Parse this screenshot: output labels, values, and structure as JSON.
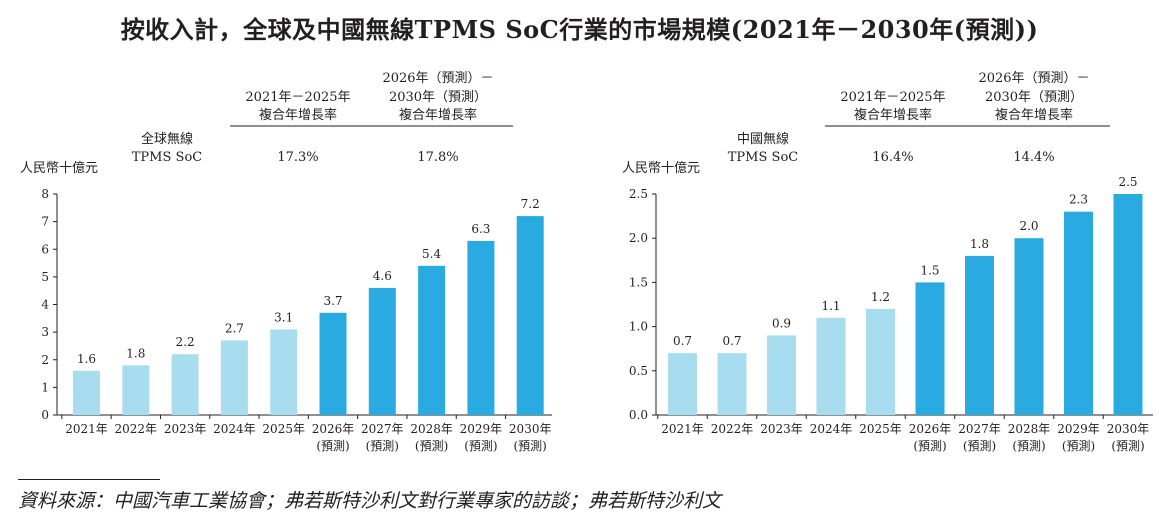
{
  "title": "按收入計，全球及中國無線TPMS SoC行業的市場規模(2021年－2030年(預測))",
  "colors": {
    "historical": "#a8ddf0",
    "forecast": "#29abe2",
    "axis": "#231f20",
    "text": "#231f20"
  },
  "cagr_headers": {
    "period1": [
      "2021年－2025年",
      "複合年增長率"
    ],
    "period2": [
      "2026年（預測）－",
      "2030年（預測）",
      "複合年增長率"
    ]
  },
  "chart_data": [
    {
      "type": "bar",
      "region": "global",
      "segment_label": [
        "全球無線",
        "TPMS SoC"
      ],
      "cagr": {
        "period1": "17.3%",
        "period2": "17.8%"
      },
      "ylabel": "人民幣十億元",
      "ylim": [
        0,
        8
      ],
      "ytick_step": 1,
      "ytick_labels": [
        "0",
        "1",
        "2",
        "3",
        "4",
        "5",
        "6",
        "7",
        "8"
      ],
      "categories": [
        "2021年",
        "2022年",
        "2023年",
        "2024年",
        "2025年",
        "2026年",
        "2027年",
        "2028年",
        "2029年",
        "2030年"
      ],
      "category_sublabels": [
        "",
        "",
        "",
        "",
        "",
        "(預測)",
        "(預測)",
        "(預測)",
        "(預測)",
        "(預測)"
      ],
      "values": [
        1.6,
        1.8,
        2.2,
        2.7,
        3.1,
        3.7,
        4.6,
        5.4,
        6.3,
        7.2
      ],
      "value_labels": [
        "1.6",
        "1.8",
        "2.2",
        "2.7",
        "3.1",
        "3.7",
        "4.6",
        "5.4",
        "6.3",
        "7.2"
      ],
      "forecast": [
        false,
        false,
        false,
        false,
        false,
        true,
        true,
        true,
        true,
        true
      ]
    },
    {
      "type": "bar",
      "region": "china",
      "segment_label": [
        "中國無線",
        "TPMS SoC"
      ],
      "cagr": {
        "period1": "16.4%",
        "period2": "14.4%"
      },
      "ylabel": "人民幣十億元",
      "ylim": [
        0,
        2.5
      ],
      "ytick_step": 0.5,
      "ytick_labels": [
        "0.0",
        "0.5",
        "1.0",
        "1.5",
        "2.0",
        "2.5"
      ],
      "categories": [
        "2021年",
        "2022年",
        "2023年",
        "2024年",
        "2025年",
        "2026年",
        "2027年",
        "2028年",
        "2029年",
        "2030年"
      ],
      "category_sublabels": [
        "",
        "",
        "",
        "",
        "",
        "(預測)",
        "(預測)",
        "(預測)",
        "(預測)",
        "(預測)"
      ],
      "values": [
        0.7,
        0.7,
        0.9,
        1.1,
        1.2,
        1.5,
        1.8,
        2.0,
        2.3,
        2.5
      ],
      "value_labels": [
        "0.7",
        "0.7",
        "0.9",
        "1.1",
        "1.2",
        "1.5",
        "1.8",
        "2.0",
        "2.3",
        "2.5"
      ],
      "forecast": [
        false,
        false,
        false,
        false,
        false,
        true,
        true,
        true,
        true,
        true
      ]
    }
  ],
  "source": "資料來源：中國汽車工業協會；弗若斯特沙利文對行業專家的訪談；弗若斯特沙利文"
}
